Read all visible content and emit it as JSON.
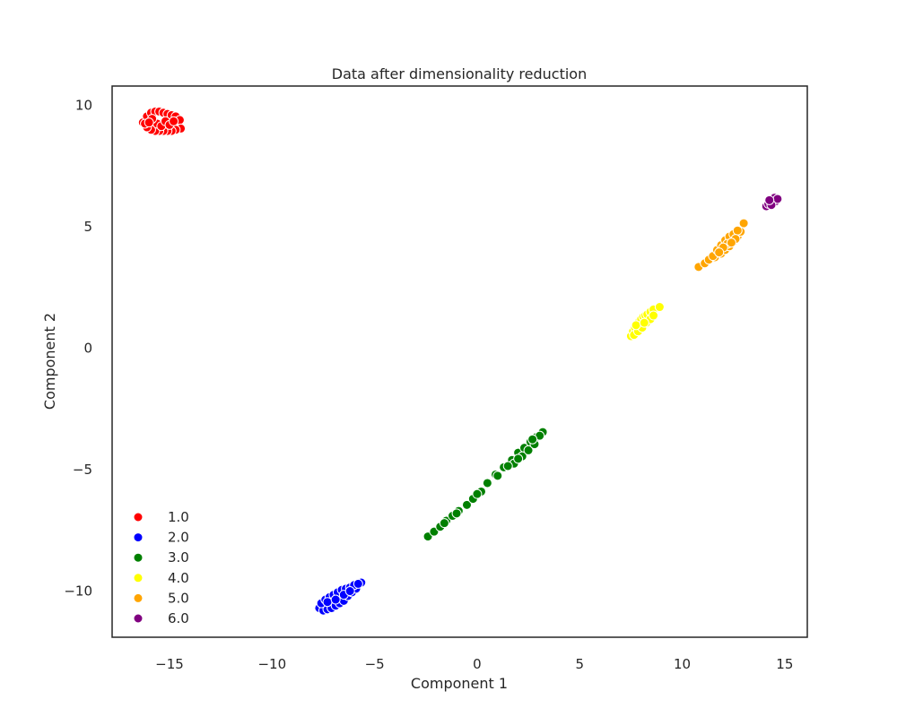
{
  "chart_data": {
    "type": "scatter",
    "title": "Data after dimensionality reduction",
    "xlabel": "Component 1",
    "ylabel": "Component 2",
    "xlim": [
      -17.8,
      16.1
    ],
    "ylim": [
      -11.9,
      10.8
    ],
    "xticks": [
      -15,
      -10,
      -5,
      0,
      5,
      10,
      15
    ],
    "xtick_labels": [
      "−15",
      "−10",
      "−5",
      "0",
      "5",
      "10",
      "15"
    ],
    "yticks": [
      10,
      5,
      0,
      -5,
      -10
    ],
    "ytick_labels": [
      "10",
      "5",
      "0",
      "−5",
      "−10"
    ],
    "grid": false,
    "legend_position": "lower-left",
    "series": [
      {
        "name": "1.0",
        "color": "#ff0000",
        "points": [
          [
            -16.3,
            9.3
          ],
          [
            -16.1,
            9.55
          ],
          [
            -15.9,
            9.7
          ],
          [
            -15.7,
            9.75
          ],
          [
            -15.5,
            9.75
          ],
          [
            -15.3,
            9.7
          ],
          [
            -15.1,
            9.65
          ],
          [
            -14.9,
            9.6
          ],
          [
            -14.7,
            9.55
          ],
          [
            -14.5,
            9.4
          ],
          [
            -14.45,
            9.05
          ],
          [
            -14.7,
            9.0
          ],
          [
            -14.9,
            8.95
          ],
          [
            -15.1,
            8.95
          ],
          [
            -15.3,
            8.95
          ],
          [
            -15.5,
            8.95
          ],
          [
            -15.7,
            8.95
          ],
          [
            -15.9,
            9.0
          ],
          [
            -16.1,
            9.1
          ],
          [
            -16.2,
            9.25
          ],
          [
            -15.6,
            9.25
          ],
          [
            -15.4,
            9.15
          ],
          [
            -15.2,
            9.35
          ],
          [
            -15.0,
            9.2
          ],
          [
            -14.8,
            9.35
          ],
          [
            -15.85,
            9.45
          ],
          [
            -16.0,
            9.3
          ]
        ]
      },
      {
        "name": "2.0",
        "color": "#0000ff",
        "points": [
          [
            -7.7,
            -10.7
          ],
          [
            -7.5,
            -10.8
          ],
          [
            -7.3,
            -10.75
          ],
          [
            -7.1,
            -10.7
          ],
          [
            -6.9,
            -10.6
          ],
          [
            -6.7,
            -10.5
          ],
          [
            -6.5,
            -10.4
          ],
          [
            -6.3,
            -10.2
          ],
          [
            -6.1,
            -10.05
          ],
          [
            -5.9,
            -9.9
          ],
          [
            -5.65,
            -9.65
          ],
          [
            -7.6,
            -10.5
          ],
          [
            -7.4,
            -10.35
          ],
          [
            -7.2,
            -10.25
          ],
          [
            -7.0,
            -10.15
          ],
          [
            -6.8,
            -10.05
          ],
          [
            -6.6,
            -9.95
          ],
          [
            -6.4,
            -9.9
          ],
          [
            -6.2,
            -9.85
          ],
          [
            -6.0,
            -9.75
          ],
          [
            -5.8,
            -9.7
          ],
          [
            -7.3,
            -10.45
          ],
          [
            -6.9,
            -10.35
          ],
          [
            -6.5,
            -10.15
          ],
          [
            -6.2,
            -10.0
          ]
        ]
      },
      {
        "name": "3.0",
        "color": "#008000",
        "points": [
          [
            -2.4,
            -7.75
          ],
          [
            -2.1,
            -7.55
          ],
          [
            -1.8,
            -7.35
          ],
          [
            -1.5,
            -7.1
          ],
          [
            -1.2,
            -6.9
          ],
          [
            -0.9,
            -6.7
          ],
          [
            -0.5,
            -6.45
          ],
          [
            -0.2,
            -6.2
          ],
          [
            0.2,
            -5.9
          ],
          [
            0.5,
            -5.55
          ],
          [
            0.9,
            -5.2
          ],
          [
            1.3,
            -4.9
          ],
          [
            1.7,
            -4.6
          ],
          [
            2.0,
            -4.3
          ],
          [
            2.3,
            -4.1
          ],
          [
            2.6,
            -3.85
          ],
          [
            2.9,
            -3.65
          ],
          [
            3.2,
            -3.45
          ],
          [
            1.8,
            -4.75
          ],
          [
            2.2,
            -4.45
          ],
          [
            2.5,
            -4.2
          ],
          [
            2.8,
            -3.95
          ],
          [
            3.05,
            -3.6
          ],
          [
            -1.6,
            -7.2
          ],
          [
            -1.0,
            -6.8
          ],
          [
            0.0,
            -6.0
          ],
          [
            1.0,
            -5.25
          ],
          [
            1.5,
            -4.85
          ],
          [
            2.0,
            -4.55
          ],
          [
            2.7,
            -3.75
          ]
        ]
      },
      {
        "name": "4.0",
        "color": "#ffff00",
        "points": [
          [
            7.5,
            0.5
          ],
          [
            7.6,
            0.7
          ],
          [
            7.7,
            0.85
          ],
          [
            7.8,
            1.0
          ],
          [
            7.9,
            1.1
          ],
          [
            8.0,
            1.2
          ],
          [
            8.1,
            1.3
          ],
          [
            8.2,
            1.35
          ],
          [
            8.3,
            1.4
          ],
          [
            8.45,
            1.5
          ],
          [
            8.6,
            1.6
          ],
          [
            8.9,
            1.7
          ],
          [
            7.65,
            0.55
          ],
          [
            7.85,
            0.7
          ],
          [
            8.05,
            0.85
          ],
          [
            8.25,
            1.05
          ],
          [
            8.45,
            1.2
          ],
          [
            8.6,
            1.35
          ],
          [
            7.75,
            0.95
          ],
          [
            8.15,
            1.05
          ]
        ]
      },
      {
        "name": "5.0",
        "color": "#ffa500",
        "points": [
          [
            10.8,
            3.35
          ],
          [
            11.1,
            3.5
          ],
          [
            11.3,
            3.65
          ],
          [
            11.6,
            3.75
          ],
          [
            11.9,
            3.9
          ],
          [
            12.1,
            4.05
          ],
          [
            12.3,
            4.2
          ],
          [
            12.5,
            4.4
          ],
          [
            12.7,
            4.6
          ],
          [
            12.85,
            4.8
          ],
          [
            13.0,
            5.15
          ],
          [
            11.5,
            3.8
          ],
          [
            11.7,
            4.05
          ],
          [
            11.9,
            4.25
          ],
          [
            12.1,
            4.45
          ],
          [
            12.3,
            4.6
          ],
          [
            12.5,
            4.7
          ],
          [
            12.7,
            4.85
          ],
          [
            12.2,
            4.3
          ],
          [
            12.0,
            4.15
          ],
          [
            11.8,
            3.95
          ],
          [
            12.6,
            4.5
          ],
          [
            12.4,
            4.35
          ]
        ]
      },
      {
        "name": "6.0",
        "color": "#800080",
        "points": [
          [
            14.1,
            5.85
          ],
          [
            14.2,
            5.95
          ],
          [
            14.3,
            6.05
          ],
          [
            14.4,
            6.15
          ],
          [
            14.5,
            6.2
          ],
          [
            14.55,
            6.05
          ],
          [
            14.65,
            6.15
          ],
          [
            14.35,
            5.9
          ],
          [
            14.25,
            6.1
          ]
        ]
      }
    ]
  }
}
